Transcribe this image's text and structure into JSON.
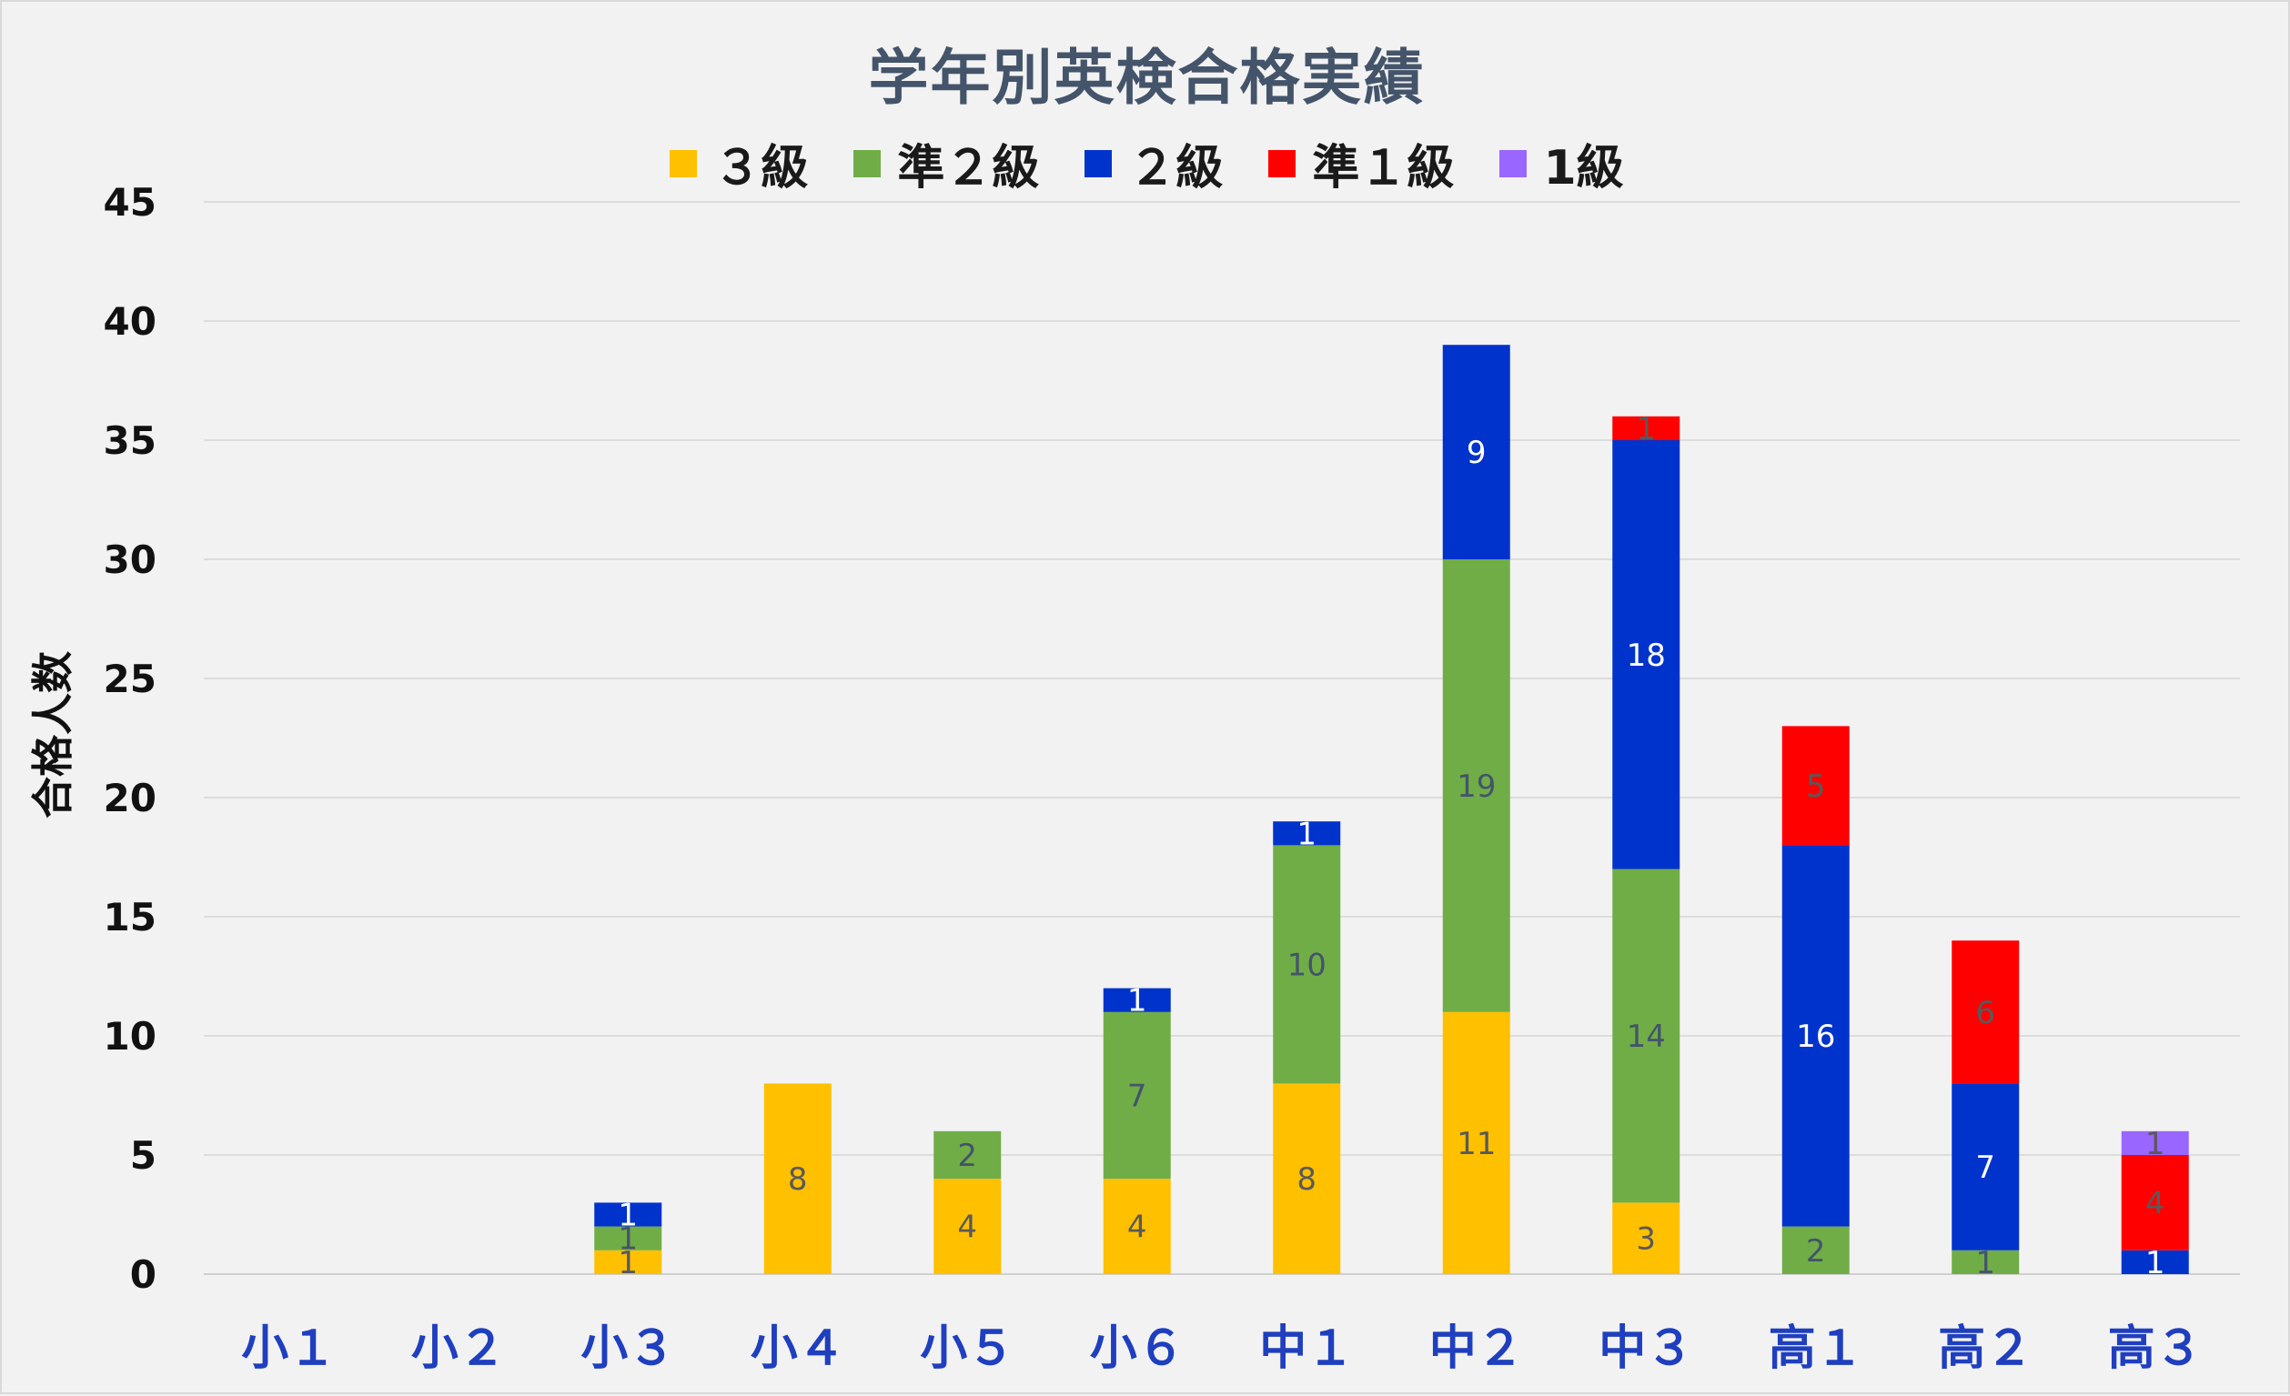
{
  "chart_data": {
    "type": "bar",
    "stacked": true,
    "title": "学年別英検合格実績",
    "ylabel": "合格人数",
    "xlabel": "",
    "ylim": [
      0,
      45
    ],
    "yticks": [
      0,
      5,
      10,
      15,
      20,
      25,
      30,
      35,
      40,
      45
    ],
    "grid": true,
    "legend_position": "top",
    "categories": [
      "小１",
      "小２",
      "小３",
      "小４",
      "小５",
      "小６",
      "中１",
      "中２",
      "中３",
      "高１",
      "高２",
      "高３"
    ],
    "series": [
      {
        "name": "３級",
        "color": "#ffc000",
        "label_color": "#595959",
        "values": [
          0,
          0,
          1,
          8,
          4,
          4,
          8,
          11,
          3,
          0,
          0,
          0
        ]
      },
      {
        "name": "準２級",
        "color": "#70ad47",
        "label_color": "#44546a",
        "values": [
          0,
          0,
          1,
          0,
          2,
          7,
          10,
          19,
          14,
          2,
          1,
          0
        ]
      },
      {
        "name": "２級",
        "color": "#0033cc",
        "label_color": "#ffffff",
        "values": [
          0,
          0,
          1,
          0,
          0,
          1,
          1,
          9,
          18,
          16,
          7,
          1
        ]
      },
      {
        "name": "準１級",
        "color": "#ff0000",
        "label_color": "#595959",
        "values": [
          0,
          0,
          0,
          0,
          0,
          0,
          0,
          0,
          1,
          5,
          6,
          4
        ]
      },
      {
        "name": "1級",
        "color": "#9966ff",
        "label_color": "#595959",
        "values": [
          0,
          0,
          0,
          0,
          0,
          0,
          0,
          0,
          0,
          0,
          0,
          1
        ]
      }
    ]
  }
}
